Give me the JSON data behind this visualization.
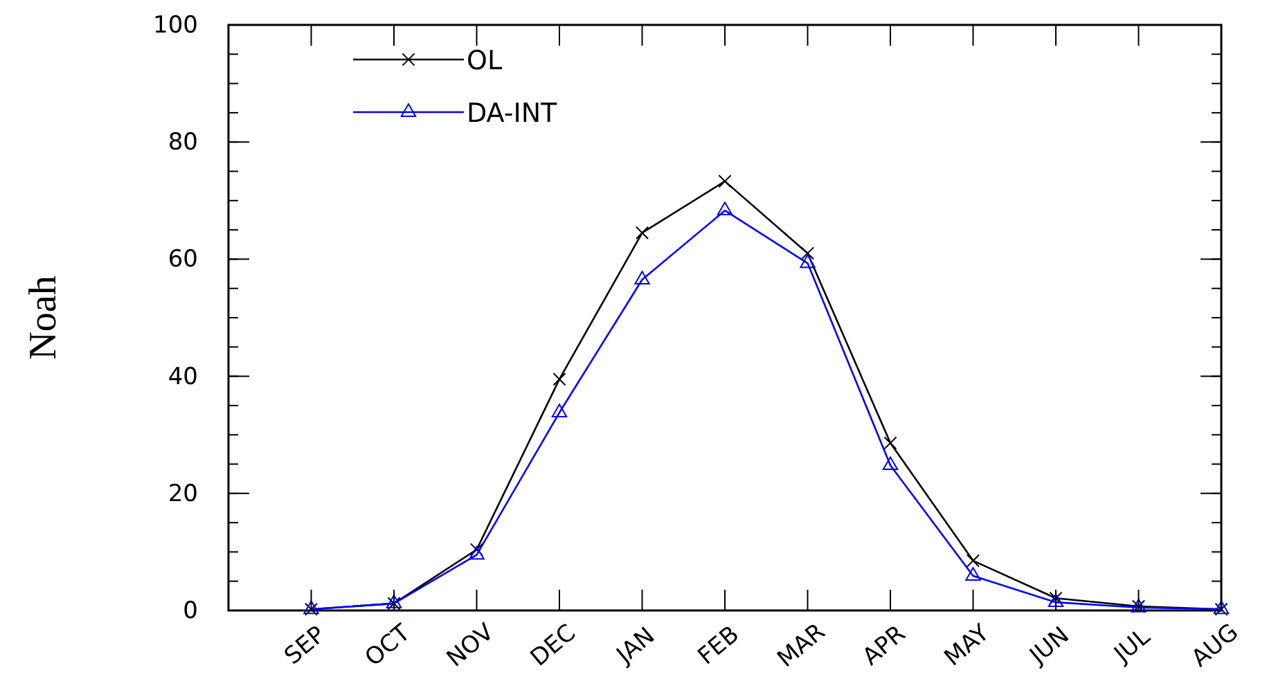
{
  "chart_data": {
    "type": "line",
    "ylabel": "Noah",
    "categories": [
      "SEP",
      "OCT",
      "NOV",
      "DEC",
      "JAN",
      "FEB",
      "MAR",
      "APR",
      "MAY",
      "JUN",
      "JUL",
      "AUG"
    ],
    "series": [
      {
        "name": "OL",
        "color": "#000000",
        "marker": "cross",
        "values": [
          0.2,
          1.2,
          10.4,
          39.5,
          64.5,
          73.3,
          61,
          28.6,
          8.5,
          2.1,
          0.7,
          0.2
        ]
      },
      {
        "name": "DA-INT",
        "color": "#0000ff",
        "marker": "triangle",
        "values": [
          0.2,
          1.2,
          9.5,
          33.8,
          56.5,
          68.3,
          59.3,
          24.8,
          5.9,
          1.4,
          0.5,
          0.2
        ]
      }
    ],
    "ylim": [
      0,
      100
    ],
    "yticks": [
      0,
      20,
      40,
      60,
      80,
      100
    ],
    "legend": "top left",
    "grid": false
  }
}
